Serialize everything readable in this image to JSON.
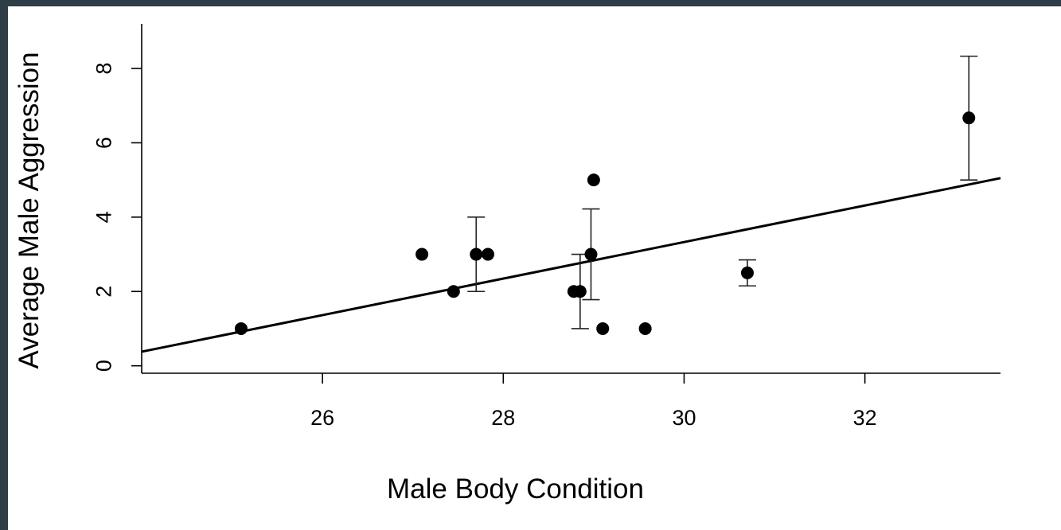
{
  "chart_data": {
    "type": "scatter",
    "title": "",
    "xlabel": "Male Body Condition",
    "ylabel": "Average Male Aggression",
    "xlim": [
      24.0,
      33.5
    ],
    "ylim": [
      -0.2,
      9.2
    ],
    "x_ticks": [
      26,
      28,
      30,
      32
    ],
    "y_ticks": [
      0,
      2,
      4,
      6,
      8
    ],
    "grid": false,
    "legend": "none",
    "points": [
      {
        "x": 25.1,
        "y": 1.0
      },
      {
        "x": 27.1,
        "y": 3.0
      },
      {
        "x": 27.45,
        "y": 2.0
      },
      {
        "x": 27.7,
        "y": 3.0,
        "err_low": 2.0,
        "err_high": 4.0
      },
      {
        "x": 27.83,
        "y": 3.0
      },
      {
        "x": 28.78,
        "y": 2.0
      },
      {
        "x": 28.85,
        "y": 2.0,
        "err_low": 1.0,
        "err_high": 3.0
      },
      {
        "x": 28.97,
        "y": 3.0,
        "err_low": 1.78,
        "err_high": 4.22
      },
      {
        "x": 29.0,
        "y": 5.0
      },
      {
        "x": 29.1,
        "y": 1.0
      },
      {
        "x": 29.57,
        "y": 1.0
      },
      {
        "x": 30.7,
        "y": 2.5,
        "err_low": 2.15,
        "err_high": 2.85
      },
      {
        "x": 33.15,
        "y": 6.67,
        "err_low": 5.0,
        "err_high": 8.33
      }
    ],
    "regression_line": {
      "x": [
        24.0,
        33.5
      ],
      "y": [
        0.38,
        5.05
      ]
    },
    "colors": {
      "points": "#000000",
      "line": "#000000",
      "error_bars": "#222222"
    }
  }
}
